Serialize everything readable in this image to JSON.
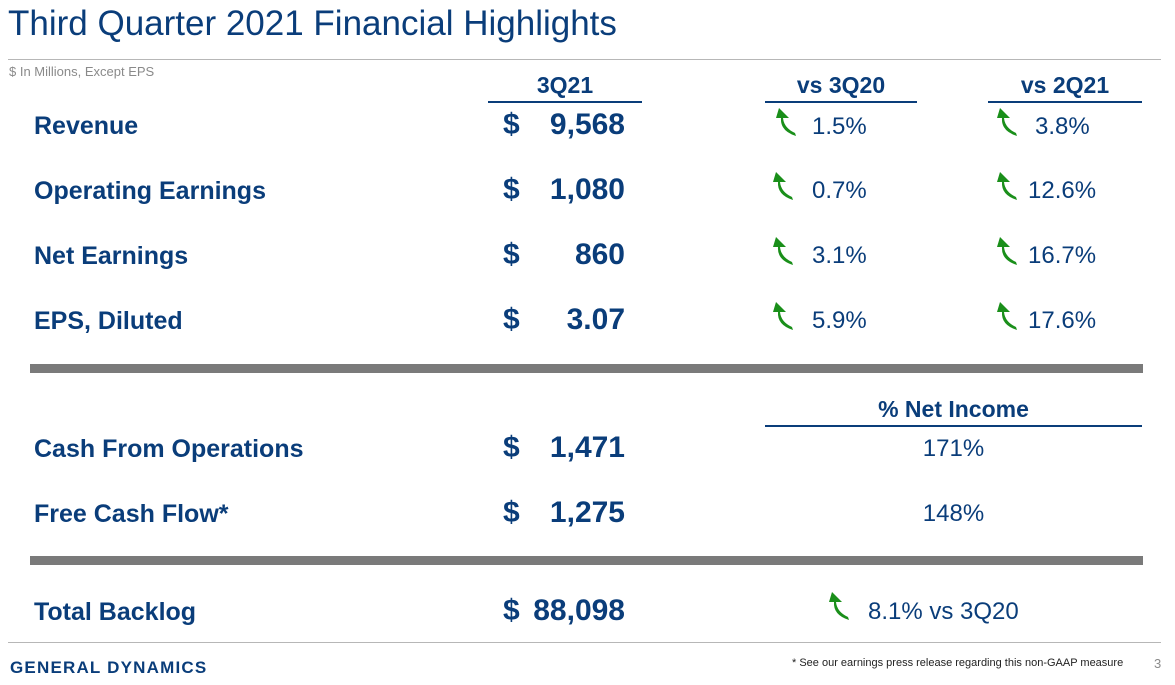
{
  "title": "Third Quarter 2021 Financial Highlights",
  "subtitle": "$ In Millions, Except EPS",
  "columns": {
    "current": "3Q21",
    "vs_prior_year": "vs 3Q20",
    "vs_prior_quarter": "vs 2Q21"
  },
  "currency_symbol": "$",
  "rows": [
    {
      "label": "Revenue",
      "value": "9,568",
      "vs_prior_year": "1.5%",
      "vs_prior_quarter": "3.8%"
    },
    {
      "label": "Operating Earnings",
      "value": "1,080",
      "vs_prior_year": "0.7%",
      "vs_prior_quarter": "12.6%"
    },
    {
      "label": "Net Earnings",
      "value": "860",
      "vs_prior_year": "3.1%",
      "vs_prior_quarter": "16.7%"
    },
    {
      "label": "EPS, Diluted",
      "value": "3.07",
      "vs_prior_year": "5.9%",
      "vs_prior_quarter": "17.6%"
    }
  ],
  "cash_header": "% Net Income",
  "cash_rows": [
    {
      "label": "Cash From Operations",
      "value": "1,471",
      "pct_net_income": "171%"
    },
    {
      "label": "Free Cash Flow*",
      "value": "1,275",
      "pct_net_income": "148%"
    }
  ],
  "backlog": {
    "label": "Total Backlog",
    "value": "88,098",
    "change": "8.1% vs 3Q20"
  },
  "arrow_color": "#1a8f1a",
  "brand_color": "#0a3d7a",
  "arrow_icon": "up-arrow-icon",
  "footer": {
    "logo": "GENERAL DYNAMICS",
    "footnote": "* See our earnings press release regarding this non-GAAP measure",
    "page_number": "3"
  }
}
